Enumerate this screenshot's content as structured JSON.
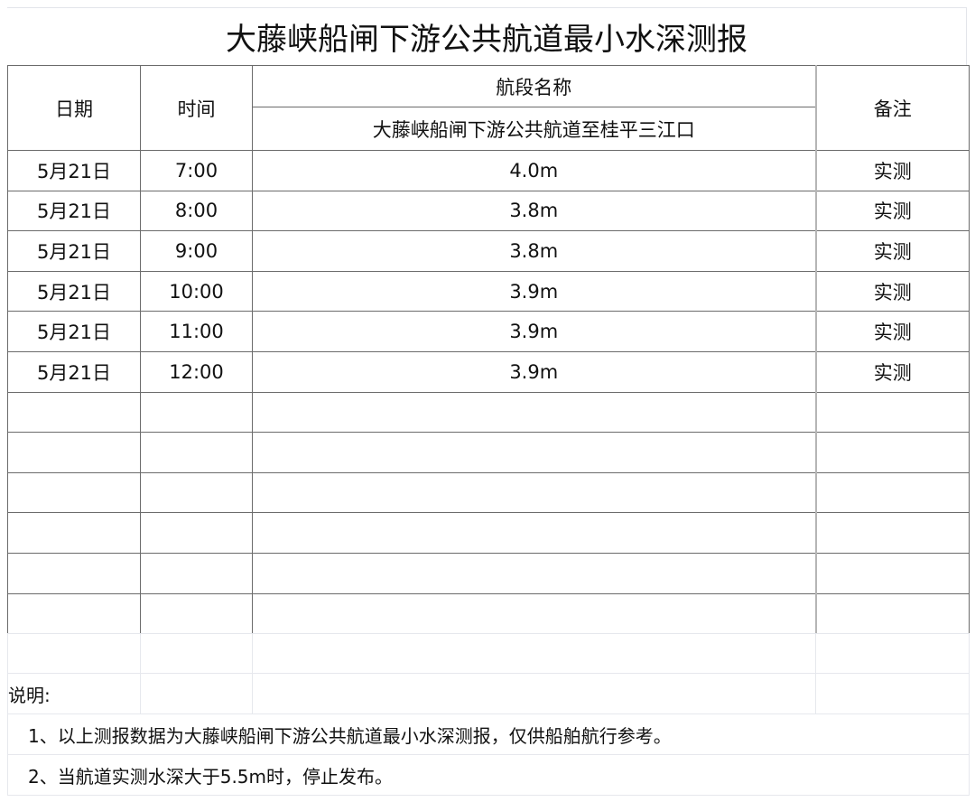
{
  "title": "大藤峡船闸下游公共航道最小水深测报",
  "headers": {
    "date": "日期",
    "time": "时间",
    "section_group": "航段名称",
    "section": "大藤峡船闸下游公共航道至桂平三江口",
    "remark": "备注"
  },
  "rows": [
    {
      "date": "5月21日",
      "time": "7:00",
      "depth": "4.0m",
      "remark": "实测"
    },
    {
      "date": "5月21日",
      "time": "8:00",
      "depth": "3.8m",
      "remark": "实测"
    },
    {
      "date": "5月21日",
      "time": "9:00",
      "depth": "3.8m",
      "remark": "实测"
    },
    {
      "date": "5月21日",
      "time": "10:00",
      "depth": "3.9m",
      "remark": "实测"
    },
    {
      "date": "5月21日",
      "time": "11:00",
      "depth": "3.9m",
      "remark": "实测"
    },
    {
      "date": "5月21日",
      "time": "12:00",
      "depth": "3.9m",
      "remark": "实测"
    }
  ],
  "empty_rows": 6,
  "notes": {
    "label": "说明:",
    "items": [
      "1、以上测报数据为大藤峡船闸下游公共航道最小水深测报，仅供船舶航行参考。",
      "2、当航道实测水深大于5.5m时，停止发布。"
    ]
  }
}
